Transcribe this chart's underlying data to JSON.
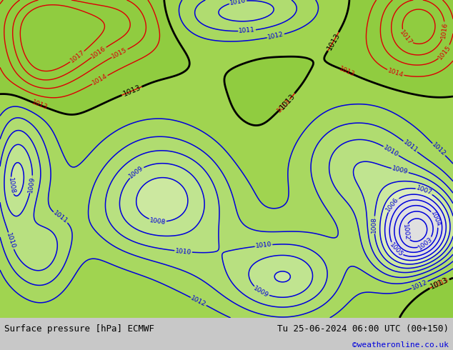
{
  "title_left": "Surface pressure [hPa] ECMWF",
  "title_right": "Tu 25-06-2024 06:00 UTC (00+150)",
  "copyright": "©weatheronline.co.uk",
  "bg_color": "#c8c8c8",
  "map_bg": "#d8d8d8",
  "bottom_bar_color": "#c8c8c8",
  "blue_contour": "#0000dd",
  "red_contour": "#dd0000",
  "black_contour": "#000000",
  "gray_contour": "#888888",
  "font_size_bottom": 9,
  "font_size_copyright": 8,
  "fill_colors": {
    "below_1006": "#e8e8e8",
    "1006_1007": "#e0eecc",
    "1007_1008": "#d8eab8",
    "1008_1009": "#cce6a4",
    "1009_1010": "#c4e290",
    "1010_1011": "#bcde7c",
    "1011_1012": "#b4da68",
    "1012_1013": "#acd654",
    "above_1013": "#90c840"
  }
}
